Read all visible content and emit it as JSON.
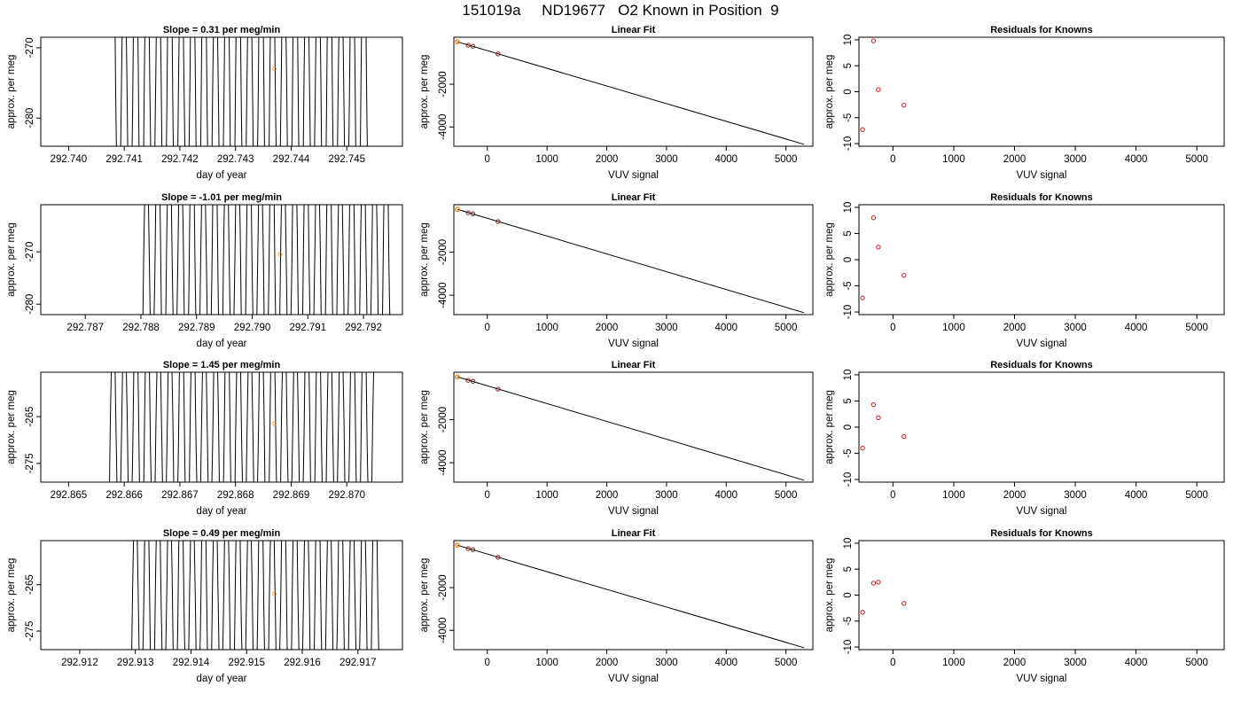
{
  "figure": {
    "title": "151019a     ND19677   O2 Known in Position  9"
  },
  "chart_data": [
    {
      "panel": "row1-time",
      "type": "line",
      "title": "Slope =  0.31  per meg/min",
      "xlabel": "day of year",
      "ylabel": "approx. per meg",
      "xlim": [
        292.7395,
        292.746
      ],
      "ylim": [
        -284,
        -268.5
      ],
      "xticks": [
        292.74,
        292.741,
        292.742,
        292.743,
        292.744,
        292.745
      ],
      "xtick_labels": [
        "292.740",
        "292.741",
        "292.742",
        "292.743",
        "292.744",
        "292.745"
      ],
      "yticks": [
        -270,
        -280
      ],
      "ytick_labels": [
        "-270",
        "-280"
      ],
      "trace": {
        "start": 292.7408,
        "end": 292.7454,
        "period": 0.000205,
        "first_peak": 292.741
      },
      "marker": {
        "x": 292.7437,
        "y": -273.0,
        "color": "#ff8c00"
      }
    },
    {
      "panel": "row1-fit",
      "type": "scatter",
      "title": "Linear Fit",
      "xlabel": "VUV signal",
      "ylabel": "approx. per meg",
      "xlim": [
        -560,
        5450
      ],
      "ylim": [
        -4900,
        200
      ],
      "xticks": [
        0,
        1000,
        2000,
        3000,
        4000,
        5000
      ],
      "xtick_labels": [
        "0",
        "1000",
        "2000",
        "3000",
        "4000",
        "5000"
      ],
      "yticks": [
        -2000,
        -4000
      ],
      "ytick_labels": [
        "-2000",
        "-4000"
      ],
      "points": [
        {
          "x": -500,
          "y": -15
        },
        {
          "x": -320,
          "y": -175
        },
        {
          "x": -240,
          "y": -220
        },
        {
          "x": 180,
          "y": -580
        }
      ],
      "highlight": {
        "x": -500,
        "y": -15,
        "color": "#ff8c00"
      },
      "fit_line": {
        "x": [
          -500,
          5300
        ],
        "y": [
          -15,
          -4810
        ]
      }
    },
    {
      "panel": "row1-residuals",
      "type": "scatter",
      "title": "Residuals for Knowns",
      "xlabel": "VUV signal",
      "ylabel": "approx. per meg",
      "xlim": [
        -560,
        5450
      ],
      "ylim": [
        -10.5,
        10.5
      ],
      "xticks": [
        0,
        1000,
        2000,
        3000,
        4000,
        5000
      ],
      "xtick_labels": [
        "0",
        "1000",
        "2000",
        "3000",
        "4000",
        "5000"
      ],
      "yticks": [
        10,
        5,
        0,
        -5,
        -10
      ],
      "ytick_labels": [
        "10",
        "5",
        "0",
        "-5",
        "-10"
      ],
      "points": [
        {
          "x": -500,
          "y": -7.3
        },
        {
          "x": -320,
          "y": 9.8
        },
        {
          "x": -240,
          "y": 0.4
        },
        {
          "x": 180,
          "y": -2.6
        }
      ]
    },
    {
      "panel": "row2-time",
      "type": "line",
      "title": "Slope =  -1.01  per meg/min",
      "xlabel": "day of year",
      "ylabel": "approx. per meg",
      "xlim": [
        292.7862,
        292.7927
      ],
      "ylim": [
        -282,
        -261
      ],
      "xticks": [
        292.787,
        292.788,
        292.789,
        292.79,
        292.791,
        292.792
      ],
      "xtick_labels": [
        "292.787",
        "292.788",
        "292.789",
        "292.790",
        "292.791",
        "292.792"
      ],
      "yticks": [
        -270,
        -280
      ],
      "ytick_labels": [
        "-270",
        "-280"
      ],
      "trace": {
        "start": 292.788,
        "end": 292.7925,
        "period": 0.000205,
        "first_peak": 292.7881
      },
      "marker": {
        "x": 292.7905,
        "y": -270.5,
        "color": "#ff8c00"
      }
    },
    {
      "panel": "row2-fit",
      "type": "scatter",
      "title": "Linear Fit",
      "xlabel": "VUV signal",
      "ylabel": "approx. per meg",
      "xlim": [
        -560,
        5450
      ],
      "ylim": [
        -4900,
        200
      ],
      "xticks": [
        0,
        1000,
        2000,
        3000,
        4000,
        5000
      ],
      "xtick_labels": [
        "0",
        "1000",
        "2000",
        "3000",
        "4000",
        "5000"
      ],
      "yticks": [
        -2000,
        -4000
      ],
      "ytick_labels": [
        "-2000",
        "-4000"
      ],
      "points": [
        {
          "x": -500,
          "y": -15
        },
        {
          "x": -320,
          "y": -175
        },
        {
          "x": -240,
          "y": -220
        },
        {
          "x": 180,
          "y": -580
        }
      ],
      "highlight": {
        "x": -500,
        "y": -15,
        "color": "#ff8c00"
      },
      "fit_line": {
        "x": [
          -500,
          5300
        ],
        "y": [
          -15,
          -4810
        ]
      }
    },
    {
      "panel": "row2-residuals",
      "type": "scatter",
      "title": "Residuals for Knowns",
      "xlabel": "VUV signal",
      "ylabel": "approx. per meg",
      "xlim": [
        -560,
        5450
      ],
      "ylim": [
        -10.5,
        10.5
      ],
      "xticks": [
        0,
        1000,
        2000,
        3000,
        4000,
        5000
      ],
      "xtick_labels": [
        "0",
        "1000",
        "2000",
        "3000",
        "4000",
        "5000"
      ],
      "yticks": [
        10,
        5,
        0,
        -5,
        -10
      ],
      "ytick_labels": [
        "10",
        "5",
        "0",
        "-5",
        "-10"
      ],
      "points": [
        {
          "x": -500,
          "y": -7.3
        },
        {
          "x": -320,
          "y": 8.0
        },
        {
          "x": -240,
          "y": 2.4
        },
        {
          "x": 180,
          "y": -3.0
        }
      ]
    },
    {
      "panel": "row3-time",
      "type": "line",
      "title": "Slope =  1.45  per meg/min",
      "xlabel": "day of year",
      "ylabel": "approx. per meg",
      "xlim": [
        292.8645,
        292.871
      ],
      "ylim": [
        -279,
        -255.5
      ],
      "xticks": [
        292.865,
        292.866,
        292.867,
        292.868,
        292.869,
        292.87
      ],
      "xtick_labels": [
        "292.865",
        "292.866",
        "292.867",
        "292.868",
        "292.869",
        "292.870"
      ],
      "yticks": [
        -265,
        -275
      ],
      "ytick_labels": [
        "-265",
        "-275"
      ],
      "trace": {
        "start": 292.8657,
        "end": 292.8705,
        "period": 0.000205,
        "first_peak": 292.8658
      },
      "marker": {
        "x": 292.8687,
        "y": -266.5,
        "color": "#ff8c00"
      }
    },
    {
      "panel": "row3-fit",
      "type": "scatter",
      "title": "Linear Fit",
      "xlabel": "VUV signal",
      "ylabel": "approx. per meg",
      "xlim": [
        -560,
        5450
      ],
      "ylim": [
        -4900,
        200
      ],
      "xticks": [
        0,
        1000,
        2000,
        3000,
        4000,
        5000
      ],
      "xtick_labels": [
        "0",
        "1000",
        "2000",
        "3000",
        "4000",
        "5000"
      ],
      "yticks": [
        -2000,
        -4000
      ],
      "ytick_labels": [
        "-2000",
        "-4000"
      ],
      "points": [
        {
          "x": -500,
          "y": -15
        },
        {
          "x": -320,
          "y": -175
        },
        {
          "x": -240,
          "y": -220
        },
        {
          "x": 180,
          "y": -580
        }
      ],
      "highlight": {
        "x": -500,
        "y": -15,
        "color": "#ff8c00"
      },
      "fit_line": {
        "x": [
          -500,
          5300
        ],
        "y": [
          -15,
          -4810
        ]
      }
    },
    {
      "panel": "row3-residuals",
      "type": "scatter",
      "title": "Residuals for Knowns",
      "xlabel": "VUV signal",
      "ylabel": "approx. per meg",
      "xlim": [
        -560,
        5450
      ],
      "ylim": [
        -10.5,
        10.5
      ],
      "xticks": [
        0,
        1000,
        2000,
        3000,
        4000,
        5000
      ],
      "xtick_labels": [
        "0",
        "1000",
        "2000",
        "3000",
        "4000",
        "5000"
      ],
      "yticks": [
        10,
        5,
        0,
        -5,
        -10
      ],
      "ytick_labels": [
        "10",
        "5",
        "0",
        "-5",
        "-10"
      ],
      "points": [
        {
          "x": -500,
          "y": -4.0
        },
        {
          "x": -320,
          "y": 4.3
        },
        {
          "x": -240,
          "y": 1.8
        },
        {
          "x": 180,
          "y": -1.8
        }
      ]
    },
    {
      "panel": "row4-time",
      "type": "line",
      "title": "Slope =  0.49  per meg/min",
      "xlabel": "day of year",
      "ylabel": "approx. per meg",
      "xlim": [
        292.9113,
        292.9178
      ],
      "ylim": [
        -279,
        -255.5
      ],
      "xticks": [
        292.912,
        292.913,
        292.914,
        292.915,
        292.916,
        292.917
      ],
      "xtick_labels": [
        "292.912",
        "292.913",
        "292.914",
        "292.915",
        "292.916",
        "292.917"
      ],
      "yticks": [
        -265,
        -275
      ],
      "ytick_labels": [
        "-265",
        "-275"
      ],
      "trace": {
        "start": 292.9129,
        "end": 292.9174,
        "period": 0.000205,
        "first_peak": 292.913
      },
      "marker": {
        "x": 292.9155,
        "y": -267.0,
        "color": "#ff8c00"
      }
    },
    {
      "panel": "row4-fit",
      "type": "scatter",
      "title": "Linear Fit",
      "xlabel": "VUV signal",
      "ylabel": "approx. per meg",
      "xlim": [
        -560,
        5450
      ],
      "ylim": [
        -4900,
        200
      ],
      "xticks": [
        0,
        1000,
        2000,
        3000,
        4000,
        5000
      ],
      "xtick_labels": [
        "0",
        "1000",
        "2000",
        "3000",
        "4000",
        "5000"
      ],
      "yticks": [
        -2000,
        -4000
      ],
      "ytick_labels": [
        "-2000",
        "-4000"
      ],
      "points": [
        {
          "x": -500,
          "y": -15
        },
        {
          "x": -320,
          "y": -175
        },
        {
          "x": -240,
          "y": -220
        },
        {
          "x": 180,
          "y": -580
        }
      ],
      "highlight": {
        "x": -500,
        "y": -15,
        "color": "#ff8c00"
      },
      "fit_line": {
        "x": [
          -500,
          5300
        ],
        "y": [
          -15,
          -4810
        ]
      }
    },
    {
      "panel": "row4-residuals",
      "type": "scatter",
      "title": "Residuals for Knowns",
      "xlabel": "VUV signal",
      "ylabel": "approx. per meg",
      "xlim": [
        -560,
        5450
      ],
      "ylim": [
        -10.5,
        10.5
      ],
      "xticks": [
        0,
        1000,
        2000,
        3000,
        4000,
        5000
      ],
      "xtick_labels": [
        "0",
        "1000",
        "2000",
        "3000",
        "4000",
        "5000"
      ],
      "yticks": [
        10,
        5,
        0,
        -5,
        -10
      ],
      "ytick_labels": [
        "10",
        "5",
        "0",
        "-5",
        "-10"
      ],
      "points": [
        {
          "x": -500,
          "y": -3.3
        },
        {
          "x": -320,
          "y": 2.3
        },
        {
          "x": -240,
          "y": 2.5
        },
        {
          "x": 180,
          "y": -1.6
        }
      ]
    }
  ],
  "colors": {
    "trace": "#000000",
    "point": "#cc0000",
    "highlight": "#ff8c00",
    "axis": "#000000"
  }
}
